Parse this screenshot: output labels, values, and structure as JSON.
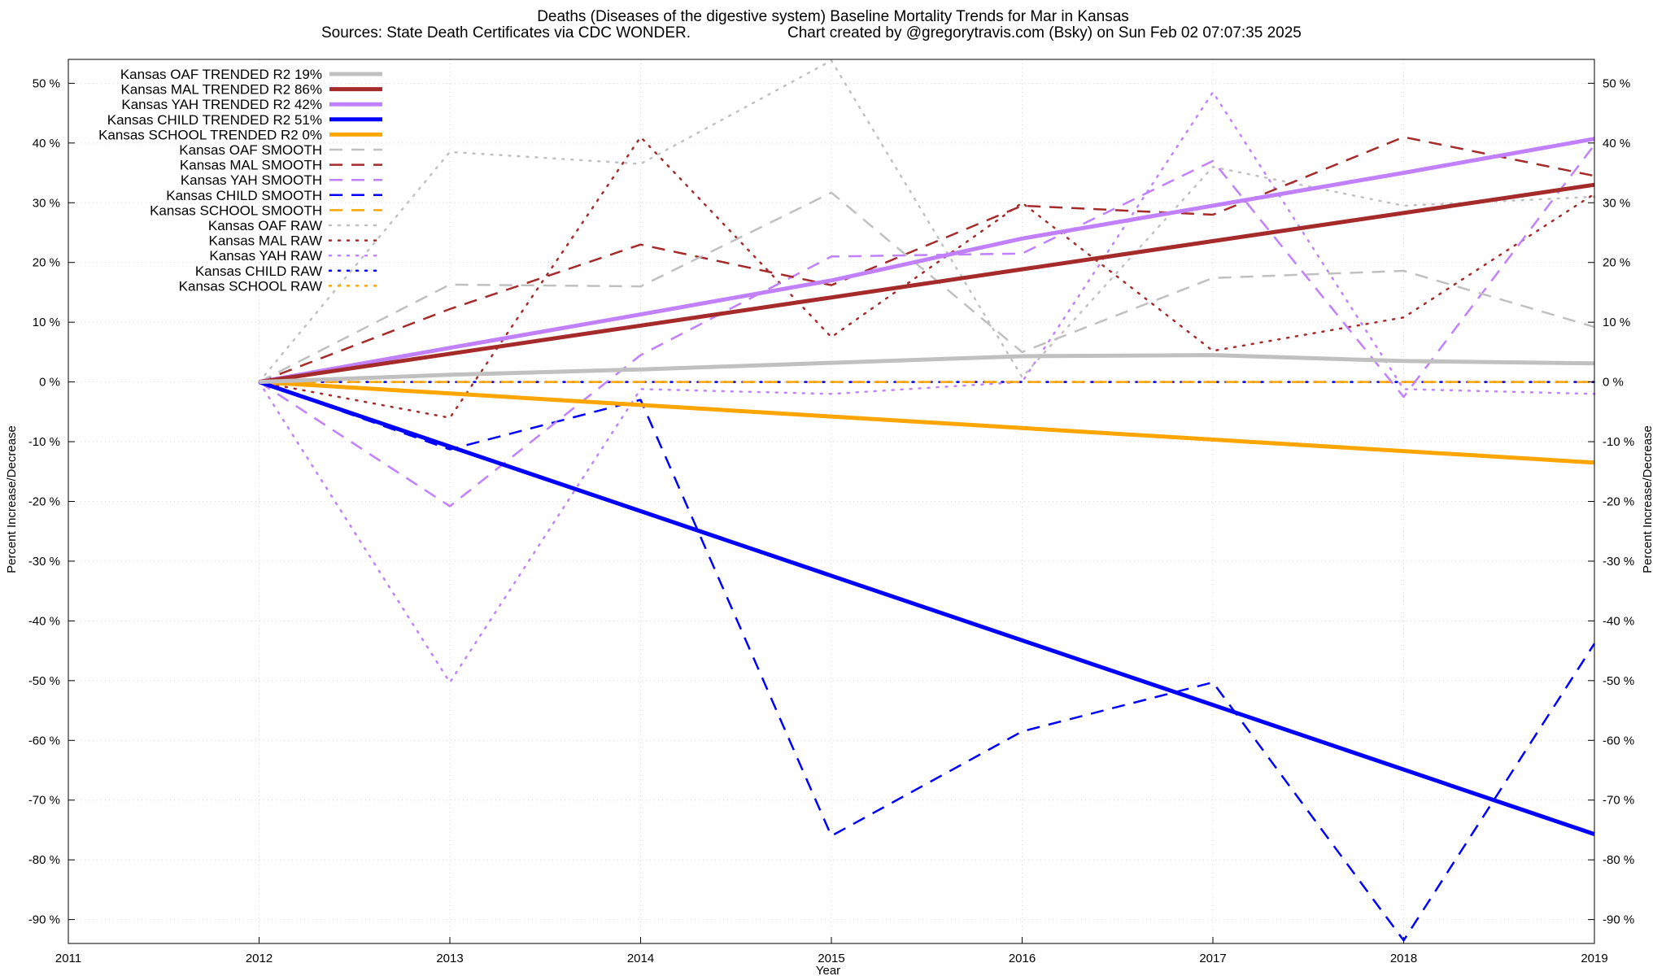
{
  "title_line1": "Deaths (Diseases of the digestive system)  Baseline Mortality Trends for Mar in Kansas",
  "title_line2_left": "Sources: State Death Certificates via CDC WONDER.",
  "title_line2_right": "Chart created by @gregorytravis.com (Bsky) on Sun Feb 02 07:07:35 2025",
  "chart_data": {
    "type": "line",
    "xlabel": "Year",
    "ylabel": "Percent Increase/Decrease",
    "ylabel_right": "Percent Increase/Decrease",
    "xlim": [
      2011,
      2019
    ],
    "ylim": [
      -94,
      54
    ],
    "x_ticks": [
      2011,
      2012,
      2013,
      2014,
      2015,
      2016,
      2017,
      2018,
      2019
    ],
    "y_ticks": [
      50,
      40,
      30,
      20,
      10,
      0,
      -10,
      -20,
      -30,
      -40,
      -50,
      -60,
      -70,
      -80,
      -90
    ],
    "y_tick_suffix": " %",
    "grid": true,
    "legend_position": "top-left",
    "series": [
      {
        "name": "Kansas OAF TRENDED R2  19%",
        "style": "solid",
        "width": 5,
        "color": "#c0c0c0",
        "x": [
          2012,
          2013,
          2014,
          2015,
          2016,
          2017,
          2018,
          2019
        ],
        "y": [
          0,
          1.2,
          2.1,
          3.2,
          4.3,
          4.5,
          3.5,
          3.1
        ]
      },
      {
        "name": "Kansas MAL TRENDED R2  86%",
        "style": "solid",
        "width": 5,
        "color": "#a52a2a",
        "x": [
          2012,
          2019
        ],
        "y": [
          0,
          33
        ]
      },
      {
        "name": "Kansas YAH TRENDED R2  42%",
        "style": "solid",
        "width": 5,
        "color": "#c080ff",
        "x": [
          2012,
          2013,
          2014,
          2015,
          2016,
          2017,
          2018,
          2019
        ],
        "y": [
          0,
          5.7,
          11.3,
          17.0,
          24.0,
          29.5,
          35.0,
          40.7
        ]
      },
      {
        "name": "Kansas CHILD TRENDED R2  51%",
        "style": "solid",
        "width": 5,
        "color": "#0000ff",
        "x": [
          2012,
          2019
        ],
        "y": [
          0,
          -75.7
        ]
      },
      {
        "name": "Kansas SCHOOL TRENDED R2   0%",
        "style": "solid",
        "width": 5,
        "color": "#ffa500",
        "x": [
          2012,
          2019
        ],
        "y": [
          0,
          -13.5
        ]
      },
      {
        "name": "Kansas OAF SMOOTH",
        "style": "dashed",
        "width": 2.5,
        "color": "#c0c0c0",
        "x": [
          2012,
          2013,
          2014,
          2015,
          2016,
          2017,
          2018,
          2019
        ],
        "y": [
          0,
          16.3,
          16,
          31.7,
          5,
          17.4,
          18.6,
          9.2
        ]
      },
      {
        "name": "Kansas MAL SMOOTH",
        "style": "dashed",
        "width": 2.5,
        "color": "#a52a2a",
        "x": [
          2012,
          2013,
          2014,
          2015,
          2016,
          2017,
          2018,
          2019
        ],
        "y": [
          0,
          12.2,
          23,
          16.2,
          29.5,
          28,
          41,
          34.5
        ]
      },
      {
        "name": "Kansas YAH SMOOTH",
        "style": "dashed",
        "width": 2.5,
        "color": "#c080ff",
        "x": [
          2012,
          2013,
          2014,
          2015,
          2016,
          2017,
          2018,
          2019
        ],
        "y": [
          0,
          -20.8,
          4.5,
          21,
          21.5,
          37,
          -2.5,
          39.7
        ]
      },
      {
        "name": "Kansas CHILD SMOOTH",
        "style": "dashed",
        "width": 2.5,
        "color": "#0000ff",
        "x": [
          2012,
          2013,
          2014,
          2015,
          2016,
          2017,
          2018,
          2019
        ],
        "y": [
          0,
          -11.3,
          -3,
          -76,
          -58.5,
          -50.3,
          -93.5,
          -43.8
        ]
      },
      {
        "name": "Kansas SCHOOL SMOOTH",
        "style": "dashed",
        "width": 2.5,
        "color": "#ffa500",
        "x": [
          2012,
          2013,
          2014,
          2015,
          2016,
          2017,
          2018,
          2019
        ],
        "y": [
          0,
          0,
          0,
          0,
          0,
          0,
          0,
          0
        ]
      },
      {
        "name": "Kansas OAF RAW",
        "style": "dotted",
        "width": 2.5,
        "color": "#c0c0c0",
        "x": [
          2012,
          2013,
          2014,
          2015,
          2016,
          2017,
          2018,
          2019
        ],
        "y": [
          0,
          38.5,
          36.5,
          53.8,
          0.8,
          36,
          29.5,
          31
        ]
      },
      {
        "name": "Kansas MAL RAW",
        "style": "dotted",
        "width": 2.5,
        "color": "#a52a2a",
        "x": [
          2012,
          2013,
          2014,
          2015,
          2016,
          2017,
          2018,
          2019
        ],
        "y": [
          0,
          -6,
          41,
          7.5,
          30,
          5.2,
          10.8,
          31.5
        ]
      },
      {
        "name": "Kansas YAH RAW",
        "style": "dotted",
        "width": 2.5,
        "color": "#c080ff",
        "x": [
          2012,
          2013,
          2014,
          2015,
          2016,
          2017,
          2018,
          2019
        ],
        "y": [
          0,
          -50.3,
          -1.2,
          -2,
          0,
          48.5,
          -1.2,
          -2
        ]
      },
      {
        "name": "Kansas CHILD RAW",
        "style": "dotted",
        "width": 2.5,
        "color": "#0000ff",
        "x": [
          2012,
          2013,
          2014,
          2015,
          2016,
          2017,
          2018,
          2019
        ],
        "y": [
          0,
          0,
          0,
          0,
          0,
          0,
          0,
          0
        ]
      },
      {
        "name": "Kansas SCHOOL RAW",
        "style": "dotted",
        "width": 2.5,
        "color": "#ffa500",
        "x": [
          2012,
          2013,
          2014,
          2015,
          2016,
          2017,
          2018,
          2019
        ],
        "y": [
          0,
          0,
          0,
          0,
          0,
          0,
          0,
          0
        ]
      }
    ]
  }
}
